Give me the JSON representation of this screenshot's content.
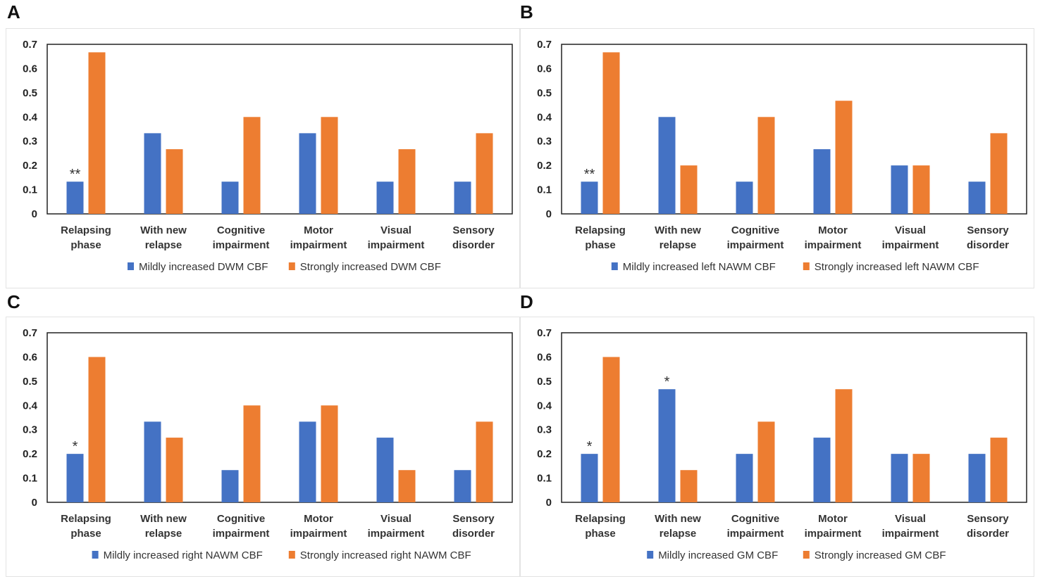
{
  "colors": {
    "mild": "#4472C4",
    "strong": "#ED7D31"
  },
  "chart_data": [
    {
      "panel": "A",
      "type": "bar",
      "categories": [
        [
          "Relapsing",
          "phase"
        ],
        [
          "With new",
          "relapse"
        ],
        [
          "Cognitive",
          "impairment"
        ],
        [
          "Motor",
          "impairment"
        ],
        [
          "Visual",
          "impairment"
        ],
        [
          "Sensory",
          "disorder"
        ]
      ],
      "yticks": [
        "0",
        "0.1",
        "0.2",
        "0.3",
        "0.4",
        "0.5",
        "0.6",
        "0.7"
      ],
      "ylim": [
        0,
        0.7
      ],
      "series": [
        {
          "name": "Mildly increased DWM CBF",
          "color": "#4472C4",
          "values": [
            0.133,
            0.333,
            0.133,
            0.333,
            0.133,
            0.133
          ]
        },
        {
          "name": "Strongly increased DWM CBF",
          "color": "#ED7D31",
          "values": [
            0.667,
            0.267,
            0.4,
            0.4,
            0.267,
            0.333
          ]
        }
      ],
      "annotations": [
        {
          "category": 0,
          "series": 0,
          "text": "**"
        }
      ]
    },
    {
      "panel": "B",
      "type": "bar",
      "categories": [
        [
          "Relapsing",
          "phase"
        ],
        [
          "With new",
          "relapse"
        ],
        [
          "Cognitive",
          "impairment"
        ],
        [
          "Motor",
          "impairment"
        ],
        [
          "Visual",
          "impairment"
        ],
        [
          "Sensory",
          "disorder"
        ]
      ],
      "yticks": [
        "0",
        "0.1",
        "0.2",
        "0.3",
        "0.4",
        "0.5",
        "0.6",
        "0.7"
      ],
      "ylim": [
        0,
        0.7
      ],
      "series": [
        {
          "name": "Mildly increased left NAWM CBF",
          "color": "#4472C4",
          "values": [
            0.133,
            0.4,
            0.133,
            0.267,
            0.2,
            0.133
          ]
        },
        {
          "name": "Strongly increased left NAWM CBF",
          "color": "#ED7D31",
          "values": [
            0.667,
            0.2,
            0.4,
            0.467,
            0.2,
            0.333
          ]
        }
      ],
      "annotations": [
        {
          "category": 0,
          "series": 0,
          "text": "**"
        }
      ]
    },
    {
      "panel": "C",
      "type": "bar",
      "categories": [
        [
          "Relapsing",
          "phase"
        ],
        [
          "With new",
          "relapse"
        ],
        [
          "Cognitive",
          "impairment"
        ],
        [
          "Motor",
          "impairment"
        ],
        [
          "Visual",
          "impairment"
        ],
        [
          "Sensory",
          "disorder"
        ]
      ],
      "yticks": [
        "0",
        "0.1",
        "0.2",
        "0.3",
        "0.4",
        "0.5",
        "0.6",
        "0.7"
      ],
      "ylim": [
        0,
        0.7
      ],
      "series": [
        {
          "name": "Mildly increased right NAWM CBF",
          "color": "#4472C4",
          "values": [
            0.2,
            0.333,
            0.133,
            0.333,
            0.267,
            0.133
          ]
        },
        {
          "name": "Strongly increased right NAWM CBF",
          "color": "#ED7D31",
          "values": [
            0.6,
            0.267,
            0.4,
            0.4,
            0.133,
            0.333
          ]
        }
      ],
      "annotations": [
        {
          "category": 0,
          "series": 0,
          "text": "*"
        }
      ]
    },
    {
      "panel": "D",
      "type": "bar",
      "categories": [
        [
          "Relapsing",
          "phase"
        ],
        [
          "With new",
          "relapse"
        ],
        [
          "Cognitive",
          "impairment"
        ],
        [
          "Motor",
          "impairment"
        ],
        [
          "Visual",
          "impairment"
        ],
        [
          "Sensory",
          "disorder"
        ]
      ],
      "yticks": [
        "0",
        "0.1",
        "0.2",
        "0.3",
        "0.4",
        "0.5",
        "0.6",
        "0.7"
      ],
      "ylim": [
        0,
        0.7
      ],
      "series": [
        {
          "name": "Mildly increased GM CBF",
          "color": "#4472C4",
          "values": [
            0.2,
            0.467,
            0.2,
            0.267,
            0.2,
            0.2
          ]
        },
        {
          "name": "Strongly increased GM CBF",
          "color": "#ED7D31",
          "values": [
            0.6,
            0.133,
            0.333,
            0.467,
            0.2,
            0.267
          ]
        }
      ],
      "annotations": [
        {
          "category": 0,
          "series": 0,
          "text": "*"
        },
        {
          "category": 1,
          "series": 0,
          "text": "*"
        }
      ]
    }
  ]
}
